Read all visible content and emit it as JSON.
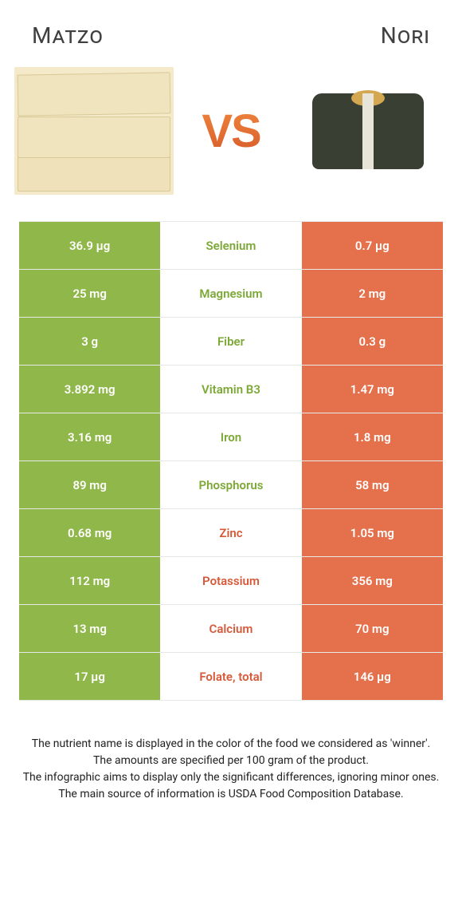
{
  "titles": {
    "left": "Matzo",
    "right": "Nori"
  },
  "vs": "VS",
  "colors": {
    "green": "#90b749",
    "orange": "#e5704c",
    "label_green": "#7ca836",
    "label_orange": "#d65a3a",
    "text_white": "#ffffff",
    "background": "#ffffff"
  },
  "comparison": {
    "left_color": "green",
    "right_color": "orange",
    "rows": [
      {
        "nutrient": "Selenium",
        "left": "36.9 µg",
        "right": "0.7 µg",
        "winner": "left"
      },
      {
        "nutrient": "Magnesium",
        "left": "25 mg",
        "right": "2 mg",
        "winner": "left"
      },
      {
        "nutrient": "Fiber",
        "left": "3 g",
        "right": "0.3 g",
        "winner": "left"
      },
      {
        "nutrient": "Vitamin B3",
        "left": "3.892 mg",
        "right": "1.47 mg",
        "winner": "left"
      },
      {
        "nutrient": "Iron",
        "left": "3.16 mg",
        "right": "1.8 mg",
        "winner": "left"
      },
      {
        "nutrient": "Phosphorus",
        "left": "89 mg",
        "right": "58 mg",
        "winner": "left"
      },
      {
        "nutrient": "Zinc",
        "left": "0.68 mg",
        "right": "1.05 mg",
        "winner": "right"
      },
      {
        "nutrient": "Potassium",
        "left": "112 mg",
        "right": "356 mg",
        "winner": "right"
      },
      {
        "nutrient": "Calcium",
        "left": "13 mg",
        "right": "70 mg",
        "winner": "right"
      },
      {
        "nutrient": "Folate, total",
        "left": "17 µg",
        "right": "146 µg",
        "winner": "right"
      }
    ]
  },
  "footnotes": [
    "The nutrient name is displayed in the color of the food we considered as 'winner'.",
    "The amounts are specified per 100 gram of the product.",
    "The infographic aims to display only the significant differences, ignoring minor ones.",
    "The main source of information is USDA Food Composition Database."
  ]
}
